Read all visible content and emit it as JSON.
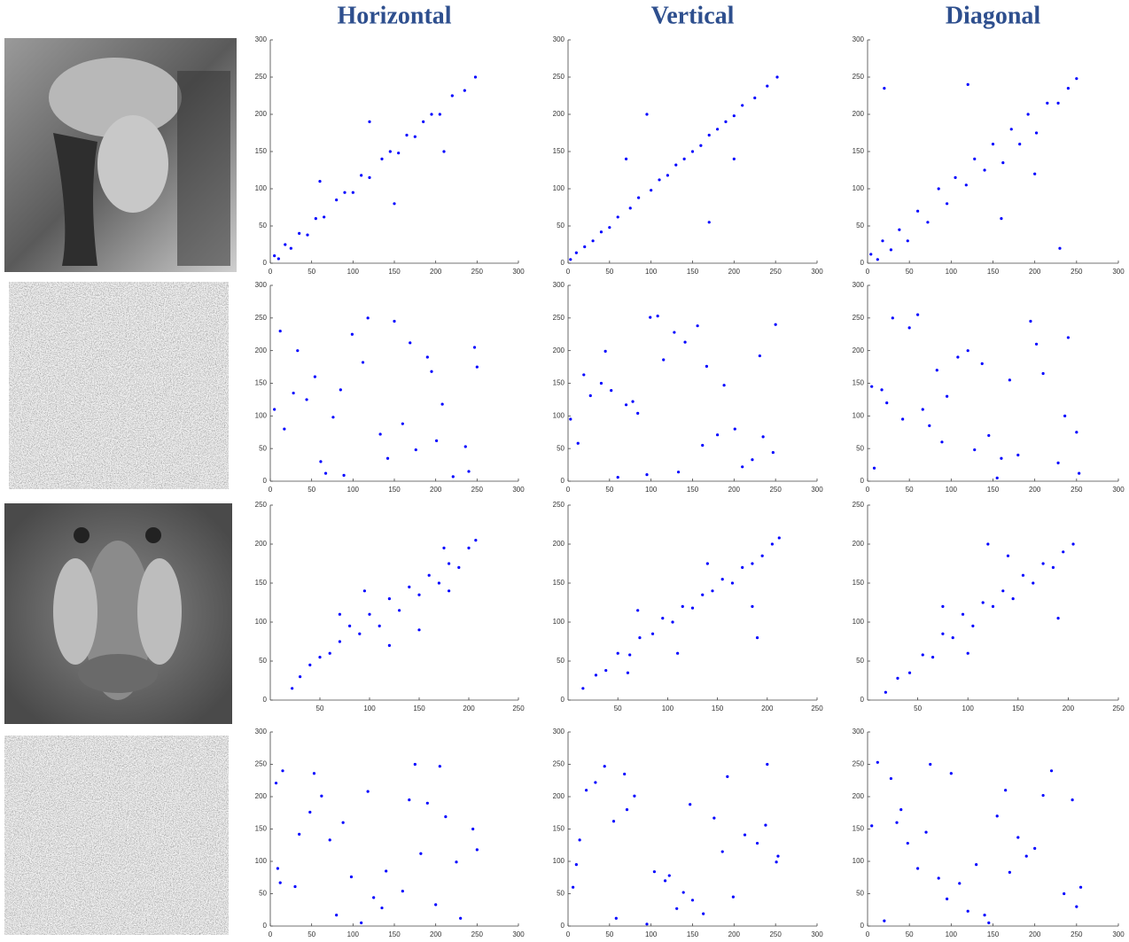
{
  "chart_data": [
    {
      "type": "scatter",
      "title": "Horizontal",
      "color": "#0000ff",
      "xlim": [
        0,
        300
      ],
      "ylim": [
        0,
        300
      ],
      "xticks": [
        0,
        50,
        100,
        150,
        200,
        250,
        300
      ],
      "yticks": [
        0,
        50,
        100,
        150,
        200,
        250,
        300
      ],
      "x": [
        5,
        10,
        18,
        25,
        35,
        45,
        55,
        65,
        80,
        90,
        100,
        110,
        120,
        135,
        145,
        155,
        165,
        175,
        185,
        195,
        205,
        220,
        235,
        248,
        60,
        150,
        210,
        120
      ],
      "y": [
        10,
        6,
        25,
        20,
        40,
        38,
        60,
        62,
        85,
        95,
        95,
        118,
        115,
        140,
        150,
        148,
        172,
        170,
        190,
        200,
        200,
        225,
        232,
        250,
        110,
        80,
        150,
        190
      ]
    },
    {
      "type": "scatter",
      "title": "Vertical",
      "color": "#0000ff",
      "xlim": [
        0,
        300
      ],
      "ylim": [
        0,
        300
      ],
      "xticks": [
        0,
        50,
        100,
        150,
        200,
        250,
        300
      ],
      "yticks": [
        0,
        50,
        100,
        150,
        200,
        250,
        300
      ],
      "x": [
        3,
        10,
        20,
        30,
        40,
        50,
        60,
        75,
        85,
        100,
        110,
        120,
        130,
        140,
        150,
        160,
        170,
        180,
        190,
        200,
        210,
        225,
        240,
        252,
        70,
        170,
        95,
        200
      ],
      "y": [
        5,
        14,
        22,
        30,
        42,
        48,
        62,
        74,
        88,
        98,
        112,
        118,
        132,
        140,
        150,
        158,
        172,
        180,
        190,
        198,
        212,
        222,
        238,
        250,
        140,
        55,
        200,
        140
      ]
    },
    {
      "type": "scatter",
      "title": "Diagonal",
      "color": "#0000ff",
      "xlim": [
        0,
        300
      ],
      "ylim": [
        0,
        300
      ],
      "xticks": [
        0,
        50,
        100,
        150,
        200,
        250,
        300
      ],
      "yticks": [
        0,
        50,
        100,
        150,
        200,
        250,
        300
      ],
      "x": [
        4,
        12,
        18,
        28,
        38,
        48,
        60,
        72,
        85,
        95,
        105,
        118,
        128,
        140,
        150,
        162,
        172,
        182,
        192,
        202,
        215,
        228,
        240,
        250,
        20,
        120,
        160,
        230,
        200
      ],
      "y": [
        12,
        5,
        30,
        18,
        45,
        30,
        70,
        55,
        100,
        80,
        115,
        105,
        140,
        125,
        160,
        135,
        180,
        160,
        200,
        175,
        215,
        215,
        235,
        248,
        235,
        240,
        60,
        20,
        120
      ]
    },
    {
      "type": "scatter",
      "color": "#0000ff",
      "xlim": [
        0,
        300
      ],
      "ylim": [
        0,
        300
      ],
      "xticks": [
        0,
        50,
        100,
        150,
        200,
        250,
        300
      ],
      "yticks": [
        0,
        50,
        100,
        150,
        200,
        250,
        300
      ],
      "x": [
        12,
        240,
        85,
        160,
        33,
        201,
        118,
        67,
        250,
        5,
        142,
        190,
        76,
        221,
        54,
        99,
        176,
        28,
        133,
        247,
        61,
        208,
        150,
        17,
        112,
        236,
        89,
        169,
        44,
        195
      ],
      "y": [
        230,
        15,
        140,
        88,
        200,
        62,
        250,
        12,
        175,
        110,
        35,
        190,
        98,
        7,
        160,
        225,
        48,
        135,
        72,
        205,
        30,
        118,
        245,
        80,
        182,
        53,
        9,
        212,
        125,
        168
      ]
    },
    {
      "type": "scatter",
      "color": "#0000ff",
      "xlim": [
        0,
        300
      ],
      "ylim": [
        0,
        300
      ],
      "xticks": [
        0,
        50,
        100,
        150,
        200,
        250,
        300
      ],
      "yticks": [
        0,
        50,
        100,
        150,
        200,
        250,
        300
      ],
      "x": [
        201,
        45,
        133,
        250,
        78,
        12,
        167,
        222,
        99,
        3,
        188,
        60,
        141,
        235,
        27,
        115,
        210,
        84,
        156,
        40,
        247,
        70,
        180,
        128,
        19,
        95,
        231,
        52,
        162,
        108
      ],
      "y": [
        80,
        199,
        14,
        240,
        122,
        58,
        176,
        33,
        251,
        95,
        147,
        6,
        213,
        68,
        131,
        186,
        22,
        104,
        238,
        150,
        44,
        117,
        71,
        228,
        163,
        10,
        192,
        139,
        55,
        253
      ]
    },
    {
      "type": "scatter",
      "color": "#0000ff",
      "xlim": [
        0,
        300
      ],
      "ylim": [
        0,
        300
      ],
      "xticks": [
        0,
        50,
        100,
        150,
        200,
        250,
        300
      ],
      "yticks": [
        0,
        50,
        100,
        150,
        200,
        250,
        300
      ],
      "x": [
        30,
        180,
        95,
        250,
        120,
        8,
        210,
        66,
        155,
        240,
        42,
        137,
        89,
        195,
        17,
        228,
        108,
        74,
        170,
        253,
        50,
        145,
        23,
        202,
        128,
        83,
        236,
        60,
        160,
        5
      ],
      "y": [
        250,
        40,
        130,
        75,
        200,
        20,
        165,
        110,
        5,
        220,
        95,
        180,
        60,
        245,
        140,
        28,
        190,
        85,
        155,
        12,
        235,
        70,
        120,
        210,
        48,
        170,
        100,
        255,
        35,
        145
      ]
    },
    {
      "type": "scatter",
      "color": "#0000ff",
      "xlim": [
        0,
        250
      ],
      "ylim": [
        0,
        250
      ],
      "xticks": [
        50,
        100,
        150,
        200,
        250
      ],
      "yticks": [
        0,
        50,
        100,
        150,
        200,
        250
      ],
      "x": [
        22,
        30,
        40,
        50,
        60,
        70,
        80,
        90,
        100,
        110,
        120,
        130,
        140,
        150,
        160,
        170,
        180,
        190,
        200,
        207,
        95,
        150,
        70,
        180,
        120,
        175
      ],
      "y": [
        15,
        30,
        45,
        55,
        60,
        75,
        95,
        85,
        110,
        95,
        130,
        115,
        145,
        135,
        160,
        150,
        175,
        170,
        195,
        205,
        140,
        90,
        110,
        140,
        70,
        195
      ]
    },
    {
      "type": "scatter",
      "color": "#0000ff",
      "xlim": [
        0,
        250
      ],
      "ylim": [
        0,
        250
      ],
      "xticks": [
        50,
        100,
        150,
        200,
        250
      ],
      "yticks": [
        0,
        50,
        100,
        150,
        200,
        250
      ],
      "x": [
        15,
        28,
        38,
        50,
        62,
        72,
        85,
        95,
        105,
        115,
        125,
        135,
        145,
        155,
        165,
        175,
        185,
        195,
        205,
        212,
        70,
        140,
        110,
        185,
        190,
        60
      ],
      "y": [
        15,
        32,
        38,
        60,
        58,
        80,
        85,
        105,
        100,
        120,
        118,
        135,
        140,
        155,
        150,
        170,
        175,
        185,
        200,
        208,
        115,
        175,
        60,
        120,
        80,
        35
      ]
    },
    {
      "type": "scatter",
      "color": "#0000ff",
      "xlim": [
        0,
        250
      ],
      "ylim": [
        0,
        250
      ],
      "xticks": [
        50,
        100,
        150,
        200,
        250
      ],
      "yticks": [
        0,
        50,
        100,
        150,
        200,
        250
      ],
      "x": [
        18,
        30,
        42,
        55,
        65,
        75,
        85,
        95,
        105,
        115,
        125,
        135,
        145,
        155,
        165,
        175,
        185,
        195,
        205,
        75,
        140,
        190,
        120,
        100
      ],
      "y": [
        10,
        28,
        35,
        58,
        55,
        85,
        80,
        110,
        95,
        125,
        120,
        140,
        130,
        160,
        150,
        175,
        170,
        190,
        200,
        120,
        185,
        105,
        200,
        60
      ]
    },
    {
      "type": "scatter",
      "color": "#0000ff",
      "xlim": [
        0,
        300
      ],
      "ylim": [
        0,
        300
      ],
      "xticks": [
        0,
        50,
        100,
        150,
        200,
        250,
        300
      ],
      "yticks": [
        0,
        50,
        100,
        150,
        200,
        250,
        300
      ],
      "x": [
        230,
        15,
        140,
        88,
        200,
        62,
        250,
        12,
        175,
        110,
        35,
        190,
        98,
        7,
        160,
        225,
        48,
        135,
        72,
        205,
        30,
        118,
        245,
        80,
        182,
        53,
        9,
        212,
        125,
        168
      ],
      "y": [
        12,
        240,
        85,
        160,
        33,
        201,
        118,
        67,
        250,
        5,
        142,
        190,
        76,
        221,
        54,
        99,
        176,
        28,
        133,
        247,
        61,
        208,
        150,
        17,
        112,
        236,
        89,
        169,
        44,
        195
      ]
    },
    {
      "type": "scatter",
      "color": "#0000ff",
      "xlim": [
        0,
        300
      ],
      "ylim": [
        0,
        300
      ],
      "xticks": [
        0,
        50,
        100,
        150,
        200,
        250,
        300
      ],
      "yticks": [
        0,
        50,
        100,
        150,
        200,
        250,
        300
      ],
      "x": [
        80,
        199,
        14,
        240,
        122,
        58,
        176,
        33,
        251,
        95,
        147,
        6,
        213,
        68,
        131,
        186,
        22,
        104,
        238,
        150,
        44,
        117,
        71,
        228,
        163,
        10,
        192,
        139,
        55,
        253
      ],
      "y": [
        201,
        45,
        133,
        250,
        78,
        12,
        167,
        222,
        99,
        3,
        188,
        60,
        141,
        235,
        27,
        115,
        210,
        84,
        156,
        40,
        247,
        70,
        180,
        128,
        19,
        95,
        231,
        52,
        162,
        108
      ]
    },
    {
      "type": "scatter",
      "color": "#0000ff",
      "xlim": [
        0,
        300
      ],
      "ylim": [
        0,
        300
      ],
      "xticks": [
        0,
        50,
        100,
        150,
        200,
        250,
        300
      ],
      "yticks": [
        0,
        50,
        100,
        150,
        200,
        250,
        300
      ],
      "x": [
        250,
        40,
        130,
        75,
        200,
        20,
        165,
        110,
        5,
        220,
        95,
        180,
        60,
        245,
        140,
        28,
        190,
        85,
        155,
        12,
        235,
        70,
        120,
        210,
        48,
        170,
        100,
        255,
        35,
        145
      ],
      "y": [
        30,
        180,
        95,
        250,
        120,
        8,
        210,
        66,
        155,
        240,
        42,
        137,
        89,
        195,
        17,
        228,
        108,
        74,
        170,
        253,
        50,
        145,
        23,
        202,
        128,
        83,
        236,
        60,
        160,
        5
      ]
    }
  ]
}
